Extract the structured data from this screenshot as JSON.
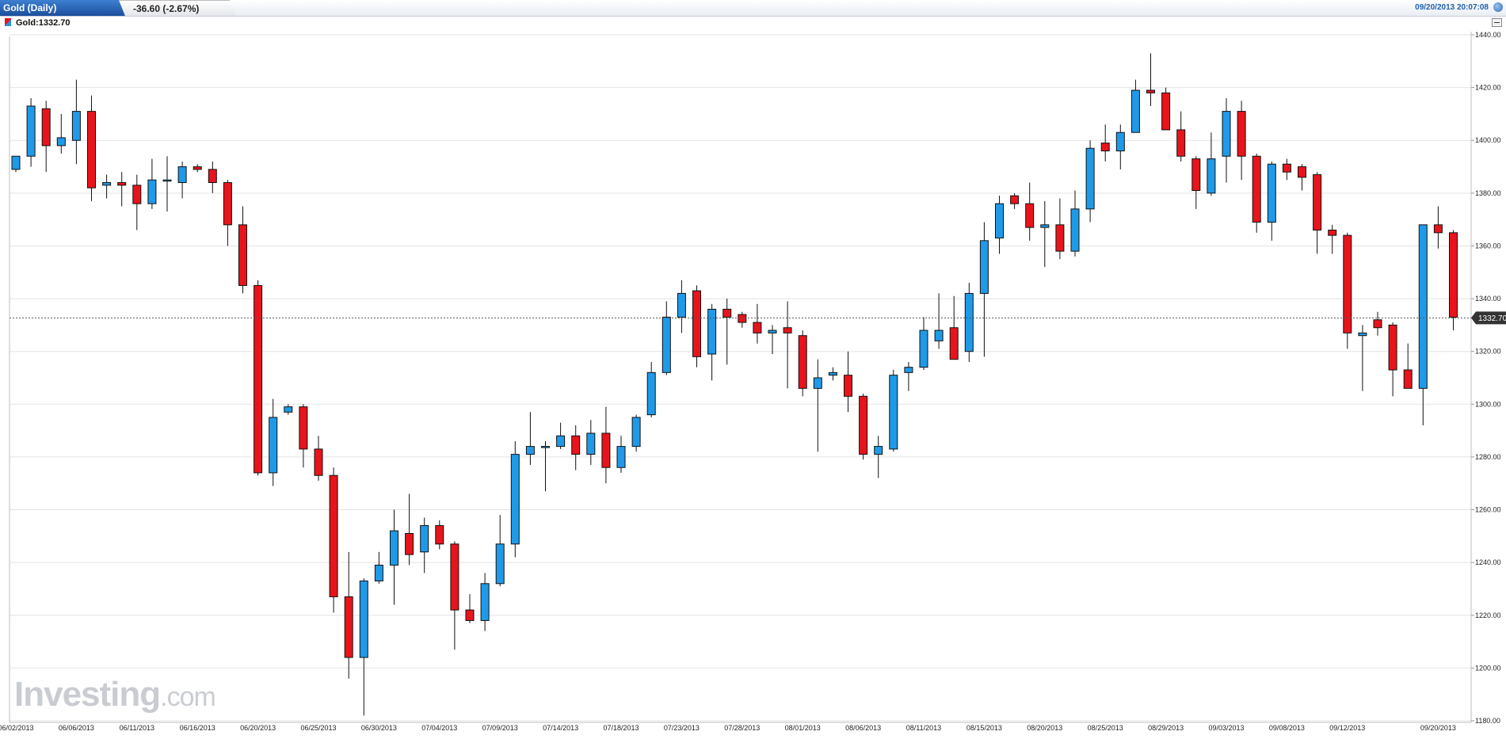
{
  "header": {
    "title": "Gold (Daily)",
    "change": "-36.60 (-2.67%)",
    "datetime": "09/20/2013 20:07:08"
  },
  "legend": {
    "label": "Gold:1332.70"
  },
  "logo": {
    "main": "Investing",
    "suffix": ".com"
  },
  "colors": {
    "up": "#1f9ae8",
    "down": "#e8141c",
    "grid": "#e3e3e3",
    "price_tag": "#333333"
  },
  "chart_data": {
    "type": "candlestick",
    "title": "Gold (Daily)",
    "ylim": [
      1180,
      1440
    ],
    "yticks": [
      1180,
      1200,
      1220,
      1240,
      1260,
      1280,
      1300,
      1320,
      1340,
      1360,
      1380,
      1400,
      1420,
      1440
    ],
    "ytick_labels": [
      "1180.00",
      "1200.00",
      "1220.00",
      "1240.00",
      "1260.00",
      "1280.00",
      "1300.00",
      "1320.00",
      "1340.00",
      "1360.00",
      "1380.00",
      "1400.00",
      "1420.00",
      "1440.00"
    ],
    "xtick_labels": [
      {
        "label": "06/02/2013",
        "index": 0
      },
      {
        "label": "06/06/2013",
        "index": 4
      },
      {
        "label": "06/11/2013",
        "index": 8
      },
      {
        "label": "06/16/2013",
        "index": 12
      },
      {
        "label": "06/20/2013",
        "index": 16
      },
      {
        "label": "06/25/2013",
        "index": 20
      },
      {
        "label": "06/30/2013",
        "index": 24
      },
      {
        "label": "07/04/2013",
        "index": 28
      },
      {
        "label": "07/09/2013",
        "index": 32
      },
      {
        "label": "07/14/2013",
        "index": 36
      },
      {
        "label": "07/18/2013",
        "index": 40
      },
      {
        "label": "07/23/2013",
        "index": 44
      },
      {
        "label": "07/28/2013",
        "index": 48
      },
      {
        "label": "08/01/2013",
        "index": 52
      },
      {
        "label": "08/06/2013",
        "index": 56
      },
      {
        "label": "08/11/2013",
        "index": 60
      },
      {
        "label": "08/15/2013",
        "index": 64
      },
      {
        "label": "08/20/2013",
        "index": 68
      },
      {
        "label": "08/25/2013",
        "index": 72
      },
      {
        "label": "08/29/2013",
        "index": 76
      },
      {
        "label": "09/03/2013",
        "index": 80
      },
      {
        "label": "09/08/2013",
        "index": 84
      },
      {
        "label": "09/12/2013",
        "index": 88
      },
      {
        "label": "09/20/2013",
        "index": 94
      }
    ],
    "last_price": 1332.7,
    "last_price_label": "1332.70",
    "ohlc": [
      {
        "o": 1389,
        "h": 1394,
        "l": 1388,
        "c": 1394
      },
      {
        "o": 1394,
        "h": 1416,
        "l": 1390,
        "c": 1413
      },
      {
        "o": 1412,
        "h": 1415,
        "l": 1388,
        "c": 1398
      },
      {
        "o": 1398,
        "h": 1410,
        "l": 1395,
        "c": 1401
      },
      {
        "o": 1400,
        "h": 1423,
        "l": 1391,
        "c": 1411
      },
      {
        "o": 1411,
        "h": 1417,
        "l": 1377,
        "c": 1382
      },
      {
        "o": 1383,
        "h": 1387,
        "l": 1378,
        "c": 1384
      },
      {
        "o": 1384,
        "h": 1388,
        "l": 1375,
        "c": 1383
      },
      {
        "o": 1383,
        "h": 1387,
        "l": 1366,
        "c": 1376
      },
      {
        "o": 1376,
        "h": 1393,
        "l": 1374,
        "c": 1385
      },
      {
        "o": 1385,
        "h": 1394,
        "l": 1373,
        "c": 1385
      },
      {
        "o": 1384,
        "h": 1392,
        "l": 1378,
        "c": 1390
      },
      {
        "o": 1390,
        "h": 1391,
        "l": 1388,
        "c": 1389
      },
      {
        "o": 1389,
        "h": 1392,
        "l": 1380,
        "c": 1384
      },
      {
        "o": 1384,
        "h": 1385,
        "l": 1360,
        "c": 1368
      },
      {
        "o": 1368,
        "h": 1375,
        "l": 1342,
        "c": 1345
      },
      {
        "o": 1345,
        "h": 1347,
        "l": 1273,
        "c": 1274
      },
      {
        "o": 1274,
        "h": 1302,
        "l": 1269,
        "c": 1295
      },
      {
        "o": 1297,
        "h": 1300,
        "l": 1296,
        "c": 1299
      },
      {
        "o": 1299,
        "h": 1300,
        "l": 1276,
        "c": 1283
      },
      {
        "o": 1283,
        "h": 1288,
        "l": 1271,
        "c": 1273
      },
      {
        "o": 1273,
        "h": 1276,
        "l": 1221,
        "c": 1227
      },
      {
        "o": 1227,
        "h": 1244,
        "l": 1196,
        "c": 1204
      },
      {
        "o": 1204,
        "h": 1234,
        "l": 1182,
        "c": 1233
      },
      {
        "o": 1233,
        "h": 1244,
        "l": 1232,
        "c": 1239
      },
      {
        "o": 1239,
        "h": 1260,
        "l": 1224,
        "c": 1252
      },
      {
        "o": 1251,
        "h": 1266,
        "l": 1239,
        "c": 1243
      },
      {
        "o": 1244,
        "h": 1257,
        "l": 1236,
        "c": 1254
      },
      {
        "o": 1254,
        "h": 1256,
        "l": 1245,
        "c": 1247
      },
      {
        "o": 1247,
        "h": 1248,
        "l": 1207,
        "c": 1222
      },
      {
        "o": 1222,
        "h": 1228,
        "l": 1217,
        "c": 1218
      },
      {
        "o": 1218,
        "h": 1236,
        "l": 1214,
        "c": 1232
      },
      {
        "o": 1232,
        "h": 1258,
        "l": 1231,
        "c": 1247
      },
      {
        "o": 1247,
        "h": 1286,
        "l": 1242,
        "c": 1281
      },
      {
        "o": 1281,
        "h": 1297,
        "l": 1277,
        "c": 1284
      },
      {
        "o": 1284,
        "h": 1286,
        "l": 1267,
        "c": 1284
      },
      {
        "o": 1284,
        "h": 1293,
        "l": 1283,
        "c": 1288
      },
      {
        "o": 1288,
        "h": 1292,
        "l": 1275,
        "c": 1281
      },
      {
        "o": 1281,
        "h": 1294,
        "l": 1277,
        "c": 1289
      },
      {
        "o": 1289,
        "h": 1299,
        "l": 1270,
        "c": 1276
      },
      {
        "o": 1276,
        "h": 1288,
        "l": 1274,
        "c": 1284
      },
      {
        "o": 1284,
        "h": 1296,
        "l": 1282,
        "c": 1295
      },
      {
        "o": 1296,
        "h": 1316,
        "l": 1295,
        "c": 1312
      },
      {
        "o": 1312,
        "h": 1339,
        "l": 1311,
        "c": 1333
      },
      {
        "o": 1333,
        "h": 1347,
        "l": 1327,
        "c": 1342
      },
      {
        "o": 1343,
        "h": 1345,
        "l": 1314,
        "c": 1318
      },
      {
        "o": 1319,
        "h": 1338,
        "l": 1309,
        "c": 1336
      },
      {
        "o": 1336,
        "h": 1340,
        "l": 1315,
        "c": 1333
      },
      {
        "o": 1334,
        "h": 1335,
        "l": 1329,
        "c": 1331
      },
      {
        "o": 1331,
        "h": 1338,
        "l": 1323,
        "c": 1327
      },
      {
        "o": 1327,
        "h": 1330,
        "l": 1319,
        "c": 1328
      },
      {
        "o": 1329,
        "h": 1339,
        "l": 1306,
        "c": 1327
      },
      {
        "o": 1326,
        "h": 1328,
        "l": 1303,
        "c": 1306
      },
      {
        "o": 1306,
        "h": 1317,
        "l": 1282,
        "c": 1310
      },
      {
        "o": 1311,
        "h": 1314,
        "l": 1309,
        "c": 1312
      },
      {
        "o": 1311,
        "h": 1320,
        "l": 1297,
        "c": 1303
      },
      {
        "o": 1303,
        "h": 1304,
        "l": 1279,
        "c": 1281
      },
      {
        "o": 1281,
        "h": 1288,
        "l": 1272,
        "c": 1284
      },
      {
        "o": 1283,
        "h": 1313,
        "l": 1282,
        "c": 1311
      },
      {
        "o": 1312,
        "h": 1316,
        "l": 1305,
        "c": 1314
      },
      {
        "o": 1314,
        "h": 1333,
        "l": 1313,
        "c": 1328
      },
      {
        "o": 1324,
        "h": 1342,
        "l": 1321,
        "c": 1328
      },
      {
        "o": 1329,
        "h": 1341,
        "l": 1318,
        "c": 1317
      },
      {
        "o": 1320,
        "h": 1346,
        "l": 1316,
        "c": 1342
      },
      {
        "o": 1342,
        "h": 1369,
        "l": 1318,
        "c": 1362
      },
      {
        "o": 1363,
        "h": 1379,
        "l": 1357,
        "c": 1376
      },
      {
        "o": 1379,
        "h": 1380,
        "l": 1374,
        "c": 1376
      },
      {
        "o": 1376,
        "h": 1384,
        "l": 1362,
        "c": 1367
      },
      {
        "o": 1367,
        "h": 1377,
        "l": 1352,
        "c": 1368
      },
      {
        "o": 1368,
        "h": 1378,
        "l": 1355,
        "c": 1358
      },
      {
        "o": 1358,
        "h": 1381,
        "l": 1356,
        "c": 1374
      },
      {
        "o": 1374,
        "h": 1400,
        "l": 1369,
        "c": 1397
      },
      {
        "o": 1399,
        "h": 1406,
        "l": 1392,
        "c": 1396
      },
      {
        "o": 1396,
        "h": 1406,
        "l": 1389,
        "c": 1403
      },
      {
        "o": 1403,
        "h": 1423,
        "l": 1403,
        "c": 1419
      },
      {
        "o": 1419,
        "h": 1433,
        "l": 1413,
        "c": 1418
      },
      {
        "o": 1418,
        "h": 1420,
        "l": 1404,
        "c": 1404
      },
      {
        "o": 1404,
        "h": 1411,
        "l": 1392,
        "c": 1394
      },
      {
        "o": 1393,
        "h": 1394,
        "l": 1374,
        "c": 1381
      },
      {
        "o": 1380,
        "h": 1403,
        "l": 1379,
        "c": 1393
      },
      {
        "o": 1394,
        "h": 1416,
        "l": 1384,
        "c": 1411
      },
      {
        "o": 1411,
        "h": 1415,
        "l": 1385,
        "c": 1394
      },
      {
        "o": 1394,
        "h": 1395,
        "l": 1365,
        "c": 1369
      },
      {
        "o": 1369,
        "h": 1392,
        "l": 1362,
        "c": 1391
      },
      {
        "o": 1391,
        "h": 1393,
        "l": 1385,
        "c": 1388
      },
      {
        "o": 1390,
        "h": 1391,
        "l": 1381,
        "c": 1386
      },
      {
        "o": 1387,
        "h": 1388,
        "l": 1357,
        "c": 1366
      },
      {
        "o": 1366,
        "h": 1368,
        "l": 1357,
        "c": 1364
      },
      {
        "o": 1364,
        "h": 1365,
        "l": 1321,
        "c": 1327
      },
      {
        "o": 1326,
        "h": 1330,
        "l": 1305,
        "c": 1327
      },
      {
        "o": 1332,
        "h": 1335,
        "l": 1326,
        "c": 1329
      },
      {
        "o": 1330,
        "h": 1331,
        "l": 1303,
        "c": 1313
      },
      {
        "o": 1313,
        "h": 1323,
        "l": 1306,
        "c": 1306
      },
      {
        "o": 1306,
        "h": 1368,
        "l": 1292,
        "c": 1368
      },
      {
        "o": 1368,
        "h": 1375,
        "l": 1359,
        "c": 1365
      },
      {
        "o": 1365,
        "h": 1366,
        "l": 1328,
        "c": 1333
      }
    ]
  }
}
